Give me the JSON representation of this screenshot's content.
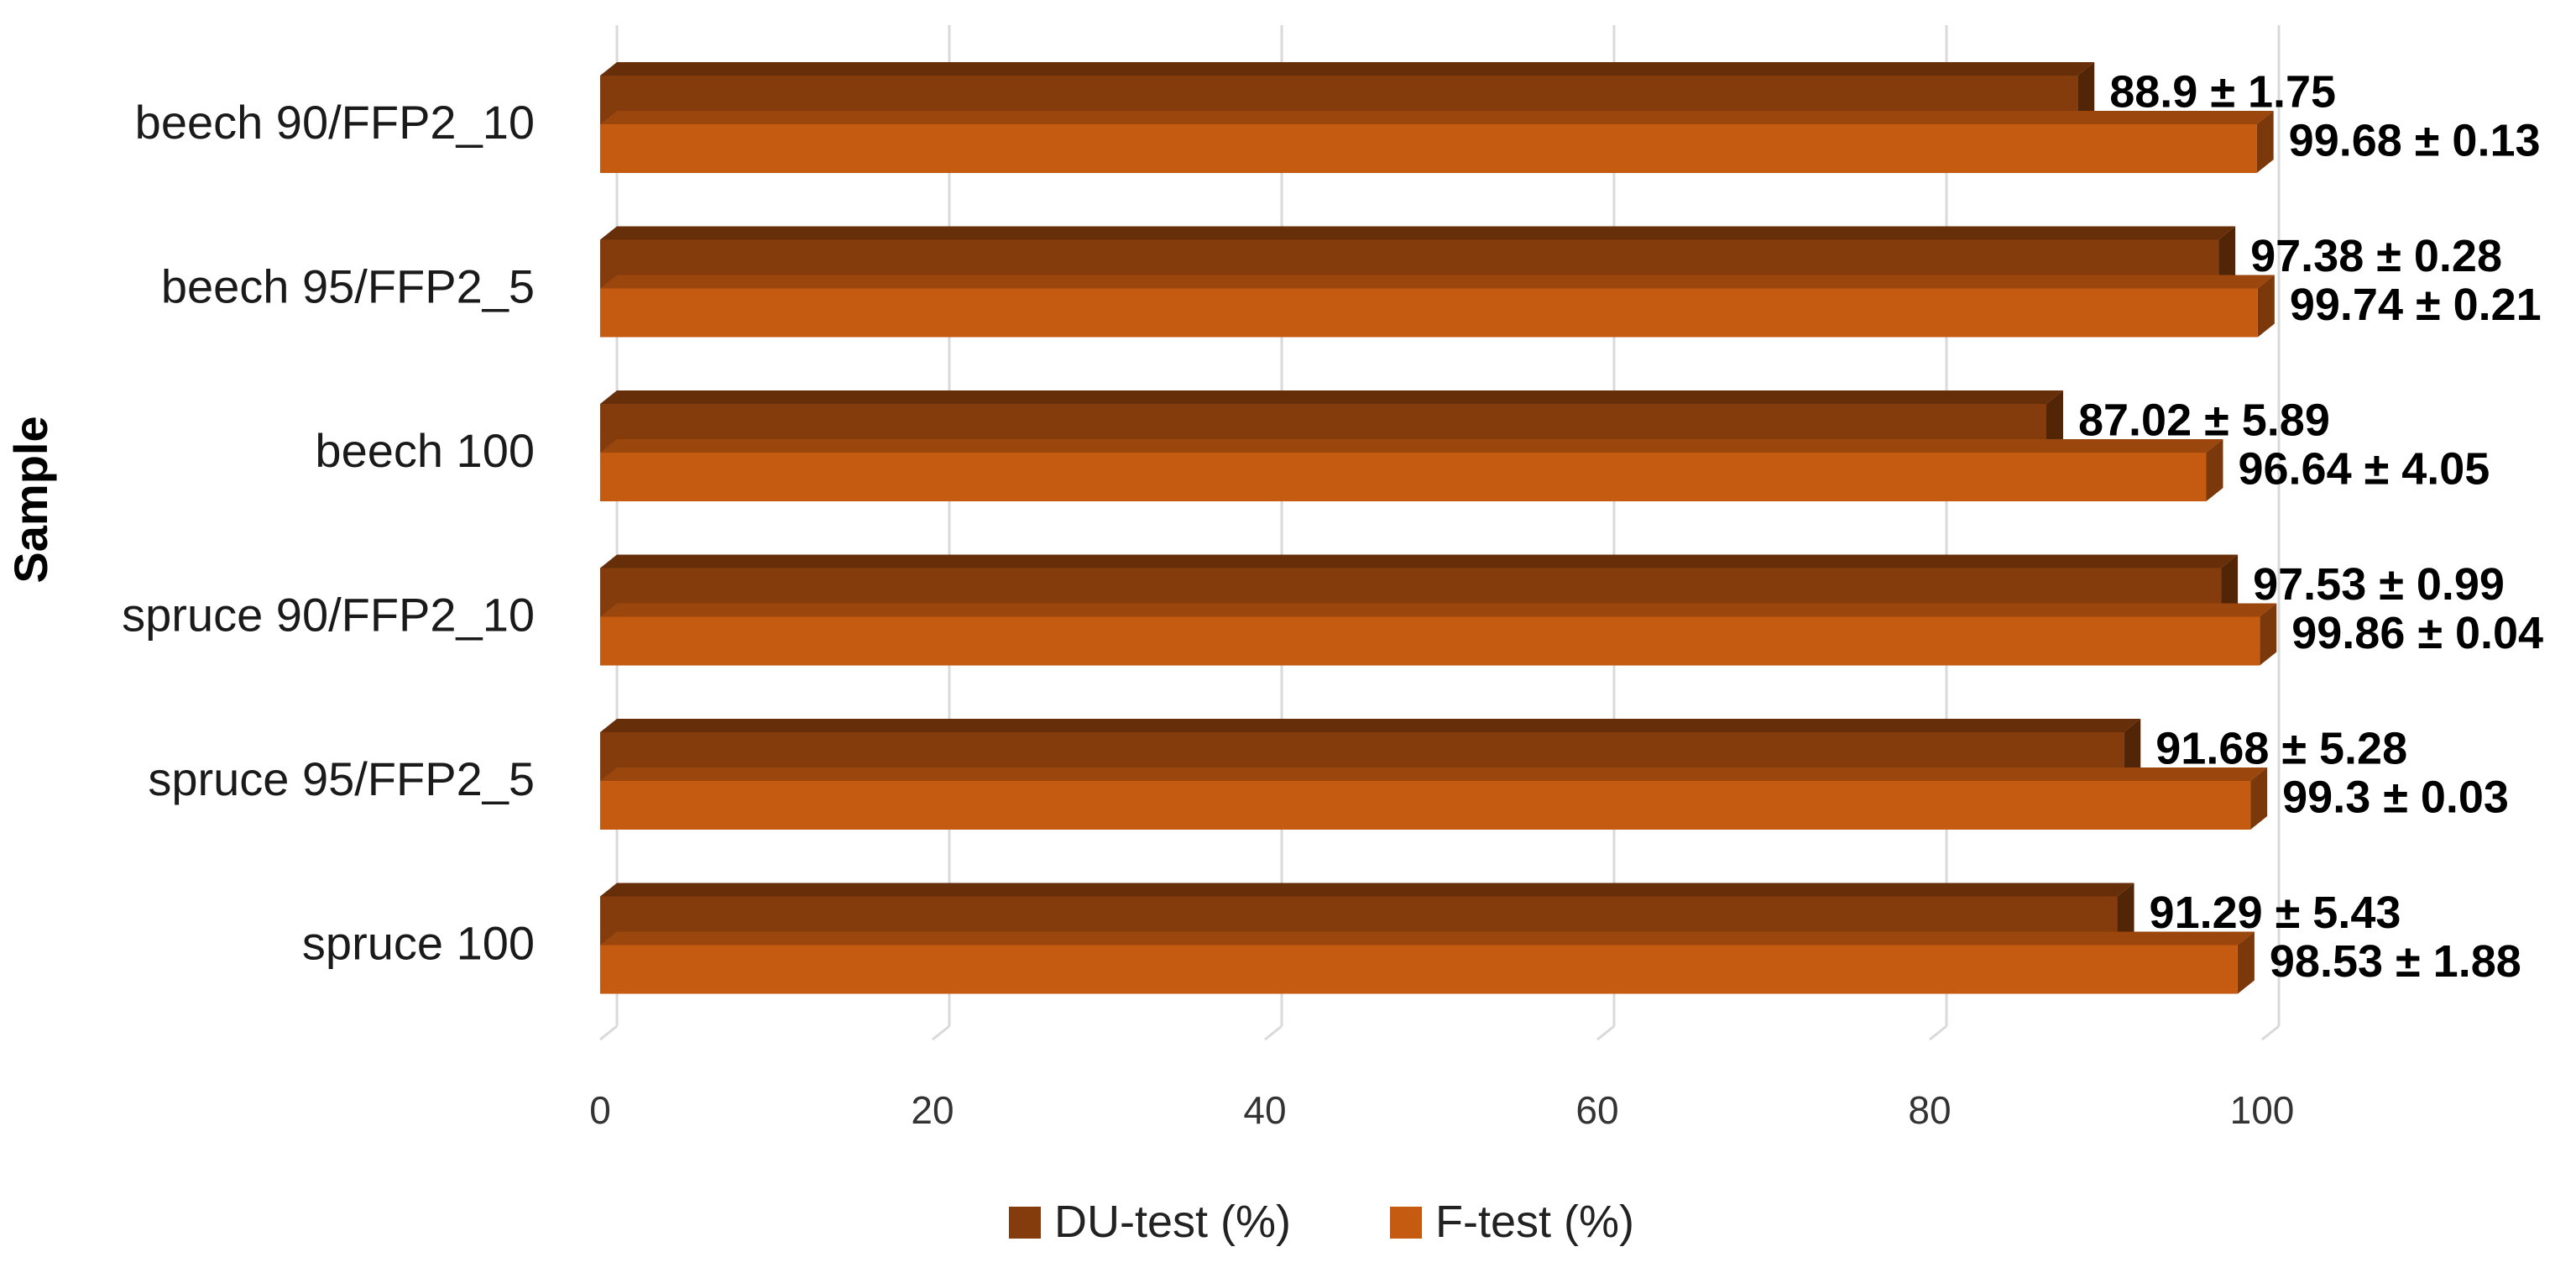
{
  "chart_data": {
    "type": "bar",
    "orientation": "horizontal",
    "ylabel": "Sample",
    "xlabel": "",
    "xlim": [
      0,
      100
    ],
    "xticks": [
      "0",
      "20",
      "40",
      "60",
      "80",
      "100"
    ],
    "grid": true,
    "legend_position": "bottom",
    "categories": [
      "beech 90/FFP2_10",
      "beech 95/FFP2_5",
      "beech 100",
      "spruce 90/FFP2_10",
      "spruce 95/FFP2_5",
      "spruce 100"
    ],
    "series": [
      {
        "name": "DU-test (%)",
        "color": "#843C0C",
        "values": [
          88.9,
          97.38,
          87.02,
          97.53,
          91.68,
          91.29
        ],
        "labels": [
          "88.9 ± 1.75",
          "97.38 ± 0.28",
          "87.02 ± 5.89",
          "97.53 ± 0.99",
          "91.68 ± 5.28",
          "91.29 ± 5.43"
        ]
      },
      {
        "name": "F-test (%)",
        "color": "#C55A11",
        "values": [
          99.68,
          99.74,
          96.64,
          99.86,
          99.3,
          98.53
        ],
        "labels": [
          "99.68 ± 0.13",
          "99.74 ± 0.21",
          "96.64 ± 4.05",
          "99.86 ± 0.04",
          "99.3 ± 0.03",
          "98.53 ± 1.88"
        ]
      }
    ]
  }
}
